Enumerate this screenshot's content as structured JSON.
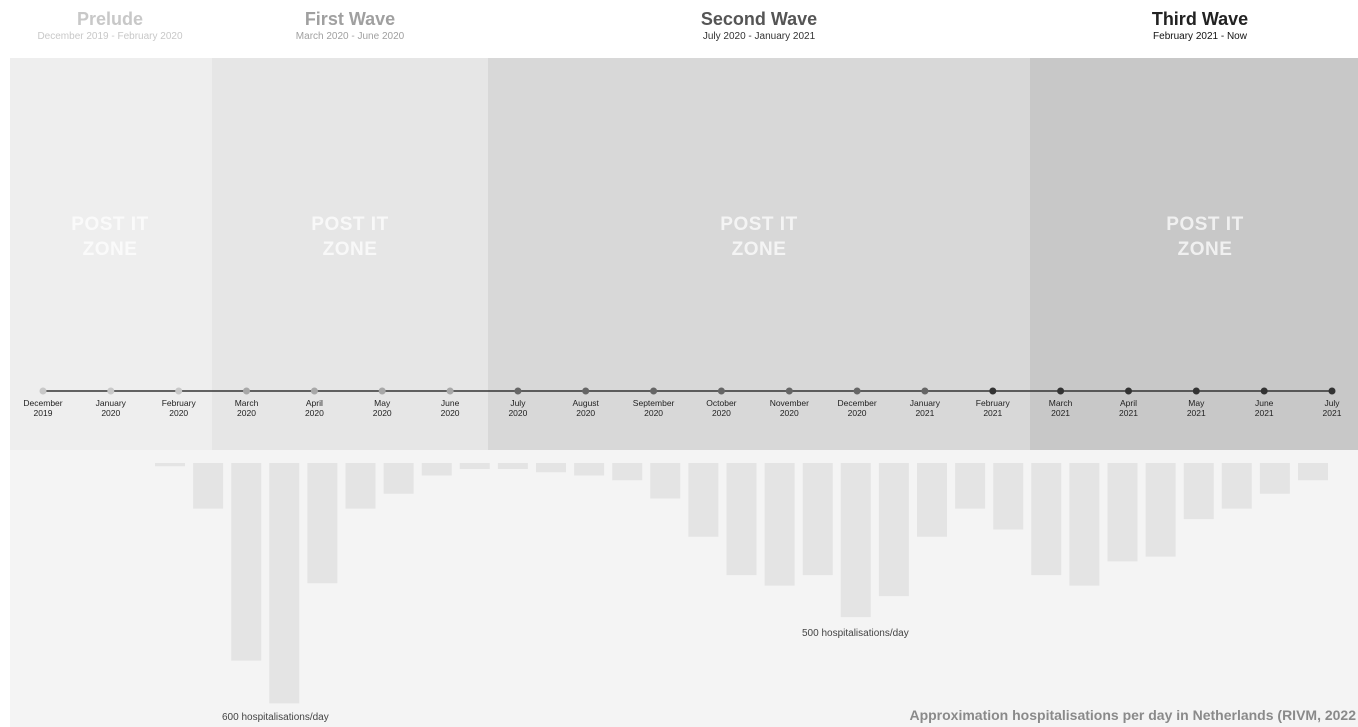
{
  "waves": [
    {
      "title": "Prelude",
      "subtitle": "December 2019 - February 2020",
      "title_color": "#c8c8c8",
      "sub_color": "#c8c8c8",
      "zone_color": "#eeeeee",
      "postit": [
        "POST IT",
        "ZONE"
      ],
      "postit_color": "#fafafa"
    },
    {
      "title": "First Wave",
      "subtitle": "March 2020 - June 2020",
      "title_color": "#a0a0a0",
      "sub_color": "#a0a0a0",
      "zone_color": "#e6e6e6",
      "postit": [
        "POST IT",
        "ZONE"
      ],
      "postit_color": "#f8f8f8"
    },
    {
      "title": "Second Wave",
      "subtitle": "July 2020 - January  2021",
      "title_color": "#555555",
      "sub_color": "#333333",
      "zone_color": "#d8d8d8",
      "postit": [
        "POST IT",
        "ZONE"
      ],
      "postit_color": "#f4f4f4"
    },
    {
      "title": "Third Wave",
      "subtitle": "February 2021 - Now",
      "title_color": "#222222",
      "sub_color": "#111111",
      "zone_color": "#c8c8c8",
      "postit": [
        "POST IT",
        "ZONE"
      ],
      "postit_color": "#f0f0f0"
    }
  ],
  "chart_data": {
    "type": "bar",
    "title": "",
    "xlabel": "",
    "ylabel": "",
    "timeline_months": [
      [
        "December",
        "2019"
      ],
      [
        "January",
        "2020"
      ],
      [
        "February",
        "2020"
      ],
      [
        "March",
        "2020"
      ],
      [
        "April",
        "2020"
      ],
      [
        "May",
        "2020"
      ],
      [
        "June",
        "2020"
      ],
      [
        "July",
        "2020"
      ],
      [
        "August",
        "2020"
      ],
      [
        "September",
        "2020"
      ],
      [
        "October",
        "2020"
      ],
      [
        "November",
        "2020"
      ],
      [
        "December",
        "2020"
      ],
      [
        "January",
        "2021"
      ],
      [
        "February",
        "2021"
      ],
      [
        "March",
        "2021"
      ],
      [
        "April",
        "2021"
      ],
      [
        "May",
        "2021"
      ],
      [
        "June",
        "2021"
      ],
      [
        "July",
        "2021"
      ]
    ],
    "timeline_dot_colors": [
      "#c8c8c8",
      "#c8c8c8",
      "#c8c8c8",
      "#a8a8a8",
      "#a8a8a8",
      "#a8a8a8",
      "#a8a8a8",
      "#666666",
      "#666666",
      "#666666",
      "#666666",
      "#666666",
      "#666666",
      "#666666",
      "#333333",
      "#333333",
      "#333333",
      "#333333",
      "#333333",
      "#333333"
    ],
    "values": [
      8,
      113,
      490,
      596,
      298,
      113,
      76,
      31,
      15,
      15,
      23,
      31,
      43,
      88,
      183,
      278,
      304,
      278,
      382,
      330,
      183,
      113,
      165,
      278,
      304,
      244,
      232,
      139,
      113,
      76,
      43
    ],
    "bar_color": "#e4e4e4",
    "annotations": [
      "600 hospitalisations/day",
      "500 hospitalisations/day"
    ],
    "source": "Approximation hospitalisations per day in Netherlands (RIVM, 2022"
  }
}
